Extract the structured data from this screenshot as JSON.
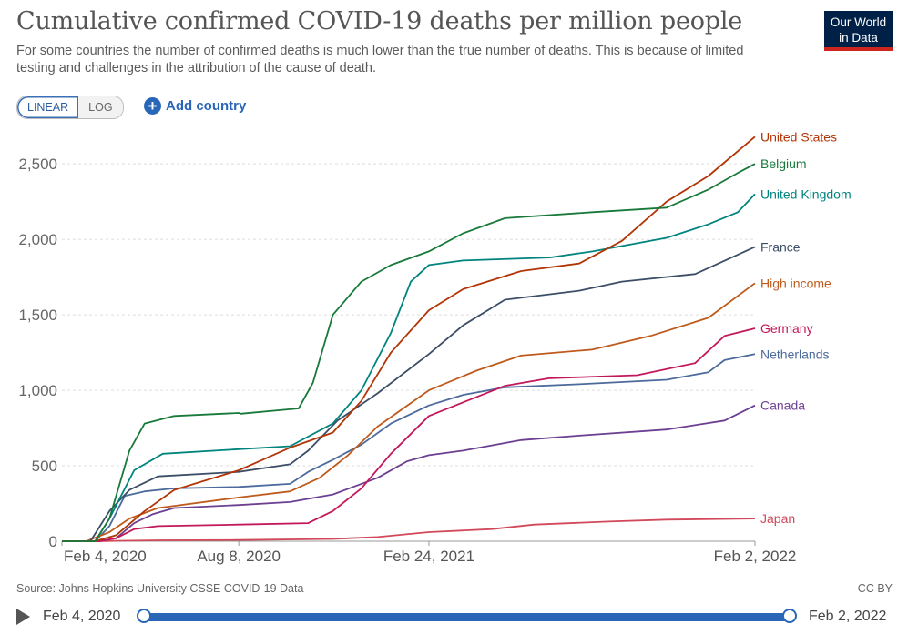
{
  "header": {
    "title": "Cumulative confirmed COVID-19 deaths per million people",
    "subtitle": "For some countries the number of confirmed deaths is much lower than the true number of deaths. This is because of limited testing and challenges in the attribution of the cause of death.",
    "logo_line1": "Our World",
    "logo_line2": "in Data"
  },
  "controls": {
    "linear_label": "LINEAR",
    "log_label": "LOG",
    "add_country_label": "Add country"
  },
  "footer": {
    "source": "Source: Johns Hopkins University CSSE COVID-19 Data",
    "license": "CC BY"
  },
  "timeline": {
    "start_label": "Feb 4, 2020",
    "end_label": "Feb 2, 2022",
    "start_fraction": 0,
    "end_fraction": 1
  },
  "chart_data": {
    "type": "line",
    "title": "Cumulative confirmed COVID-19 deaths per million people",
    "xlabel": "",
    "ylabel": "",
    "x_range": [
      "2020-02-04",
      "2022-02-02"
    ],
    "x_ticks": [
      {
        "date": "2020-02-04",
        "label": "Feb 4, 2020"
      },
      {
        "date": "2020-08-08",
        "label": "Aug 8, 2020"
      },
      {
        "date": "2021-02-24",
        "label": "Feb 24, 2021"
      },
      {
        "date": "2022-02-02",
        "label": "Feb 2, 2022"
      }
    ],
    "ylim": [
      0,
      2700
    ],
    "y_ticks": [
      0,
      500,
      1000,
      1500,
      2000,
      2500
    ],
    "y_tick_labels": [
      "0",
      "500",
      "1,000",
      "1,500",
      "2,000",
      "2,500"
    ],
    "grid": "horizontal dashed",
    "legend": "inline labels at line ends (right)",
    "series": [
      {
        "name": "Japan",
        "color": "#d1495b",
        "points": [
          [
            "2020-02-04",
            0
          ],
          [
            "2020-03-20",
            1
          ],
          [
            "2020-05-15",
            6
          ],
          [
            "2020-08-08",
            8
          ],
          [
            "2020-11-15",
            15
          ],
          [
            "2021-01-01",
            28
          ],
          [
            "2021-02-24",
            60
          ],
          [
            "2021-05-01",
            80
          ],
          [
            "2021-06-15",
            110
          ],
          [
            "2021-09-01",
            130
          ],
          [
            "2021-11-01",
            143
          ],
          [
            "2022-02-02",
            150
          ]
        ]
      },
      {
        "name": "Canada",
        "color": "#6c3f91",
        "points": [
          [
            "2020-02-04",
            0
          ],
          [
            "2020-03-15",
            1
          ],
          [
            "2020-04-01",
            20
          ],
          [
            "2020-04-20",
            120
          ],
          [
            "2020-05-10",
            180
          ],
          [
            "2020-06-01",
            220
          ],
          [
            "2020-08-08",
            240
          ],
          [
            "2020-10-01",
            260
          ],
          [
            "2020-11-15",
            310
          ],
          [
            "2021-01-01",
            420
          ],
          [
            "2021-02-01",
            530
          ],
          [
            "2021-02-24",
            570
          ],
          [
            "2021-04-01",
            600
          ],
          [
            "2021-06-01",
            670
          ],
          [
            "2021-08-01",
            700
          ],
          [
            "2021-11-01",
            740
          ],
          [
            "2022-01-01",
            800
          ],
          [
            "2022-02-02",
            900
          ]
        ]
      },
      {
        "name": "Netherlands",
        "color": "#4c6a9c",
        "points": [
          [
            "2020-02-04",
            0
          ],
          [
            "2020-03-10",
            0
          ],
          [
            "2020-03-25",
            100
          ],
          [
            "2020-04-10",
            300
          ],
          [
            "2020-05-01",
            330
          ],
          [
            "2020-06-01",
            350
          ],
          [
            "2020-08-08",
            360
          ],
          [
            "2020-10-01",
            380
          ],
          [
            "2020-10-20",
            460
          ],
          [
            "2020-11-15",
            540
          ],
          [
            "2020-12-15",
            640
          ],
          [
            "2021-01-15",
            780
          ],
          [
            "2021-02-24",
            900
          ],
          [
            "2021-04-01",
            970
          ],
          [
            "2021-05-15",
            1020
          ],
          [
            "2021-08-01",
            1040
          ],
          [
            "2021-11-01",
            1070
          ],
          [
            "2021-12-15",
            1120
          ],
          [
            "2022-01-01",
            1200
          ],
          [
            "2022-02-02",
            1240
          ]
        ]
      },
      {
        "name": "Germany",
        "color": "#c2185b",
        "points": [
          [
            "2020-02-04",
            0
          ],
          [
            "2020-03-15",
            0
          ],
          [
            "2020-04-01",
            20
          ],
          [
            "2020-04-20",
            80
          ],
          [
            "2020-05-15",
            100
          ],
          [
            "2020-08-08",
            110
          ],
          [
            "2020-10-20",
            120
          ],
          [
            "2020-11-15",
            200
          ],
          [
            "2020-12-15",
            350
          ],
          [
            "2021-01-15",
            580
          ],
          [
            "2021-02-24",
            830
          ],
          [
            "2021-04-01",
            920
          ],
          [
            "2021-05-15",
            1030
          ],
          [
            "2021-07-01",
            1080
          ],
          [
            "2021-10-01",
            1100
          ],
          [
            "2021-12-01",
            1180
          ],
          [
            "2022-01-01",
            1360
          ],
          [
            "2022-02-02",
            1410
          ]
        ]
      },
      {
        "name": "High income",
        "color": "#be5b1c",
        "points": [
          [
            "2020-02-04",
            0
          ],
          [
            "2020-03-01",
            1
          ],
          [
            "2020-03-25",
            60
          ],
          [
            "2020-04-15",
            150
          ],
          [
            "2020-05-15",
            220
          ],
          [
            "2020-08-08",
            290
          ],
          [
            "2020-10-01",
            330
          ],
          [
            "2020-11-01",
            420
          ],
          [
            "2020-12-01",
            570
          ],
          [
            "2021-01-01",
            760
          ],
          [
            "2021-02-24",
            1000
          ],
          [
            "2021-04-15",
            1130
          ],
          [
            "2021-06-01",
            1230
          ],
          [
            "2021-08-15",
            1270
          ],
          [
            "2021-10-15",
            1360
          ],
          [
            "2021-12-15",
            1480
          ],
          [
            "2022-02-02",
            1710
          ]
        ]
      },
      {
        "name": "France",
        "color": "#3c4e66",
        "points": [
          [
            "2020-02-04",
            0
          ],
          [
            "2020-03-05",
            0
          ],
          [
            "2020-03-25",
            200
          ],
          [
            "2020-04-15",
            340
          ],
          [
            "2020-05-15",
            430
          ],
          [
            "2020-08-08",
            460
          ],
          [
            "2020-10-01",
            510
          ],
          [
            "2020-10-20",
            600
          ],
          [
            "2020-11-20",
            800
          ],
          [
            "2021-01-01",
            980
          ],
          [
            "2021-02-24",
            1240
          ],
          [
            "2021-04-01",
            1430
          ],
          [
            "2021-05-15",
            1600
          ],
          [
            "2021-08-01",
            1660
          ],
          [
            "2021-09-15",
            1720
          ],
          [
            "2021-12-01",
            1770
          ],
          [
            "2022-02-02",
            1950
          ]
        ]
      },
      {
        "name": "United Kingdom",
        "color": "#00847e",
        "points": [
          [
            "2020-02-04",
            0
          ],
          [
            "2020-03-10",
            0
          ],
          [
            "2020-03-25",
            150
          ],
          [
            "2020-04-20",
            470
          ],
          [
            "2020-05-20",
            580
          ],
          [
            "2020-08-08",
            610
          ],
          [
            "2020-10-01",
            630
          ],
          [
            "2020-11-15",
            780
          ],
          [
            "2020-12-15",
            1000
          ],
          [
            "2021-01-15",
            1380
          ],
          [
            "2021-02-05",
            1720
          ],
          [
            "2021-02-24",
            1830
          ],
          [
            "2021-04-01",
            1860
          ],
          [
            "2021-07-01",
            1880
          ],
          [
            "2021-08-15",
            1920
          ],
          [
            "2021-11-01",
            2010
          ],
          [
            "2021-12-15",
            2100
          ],
          [
            "2022-01-15",
            2180
          ],
          [
            "2022-02-02",
            2300
          ]
        ]
      },
      {
        "name": "United States",
        "color": "#b13507",
        "points": [
          [
            "2020-02-04",
            0
          ],
          [
            "2020-03-10",
            0
          ],
          [
            "2020-04-01",
            40
          ],
          [
            "2020-05-01",
            200
          ],
          [
            "2020-06-01",
            340
          ],
          [
            "2020-08-08",
            470
          ],
          [
            "2020-10-01",
            620
          ],
          [
            "2020-11-15",
            720
          ],
          [
            "2020-12-15",
            930
          ],
          [
            "2021-01-15",
            1250
          ],
          [
            "2021-02-24",
            1530
          ],
          [
            "2021-04-01",
            1670
          ],
          [
            "2021-06-01",
            1790
          ],
          [
            "2021-08-01",
            1840
          ],
          [
            "2021-09-15",
            1990
          ],
          [
            "2021-11-01",
            2250
          ],
          [
            "2021-12-15",
            2420
          ],
          [
            "2022-02-02",
            2680
          ]
        ]
      },
      {
        "name": "Belgium",
        "color": "#18793b",
        "points": [
          [
            "2020-02-04",
            0
          ],
          [
            "2020-03-10",
            0
          ],
          [
            "2020-03-25",
            150
          ],
          [
            "2020-04-15",
            600
          ],
          [
            "2020-05-01",
            780
          ],
          [
            "2020-06-01",
            830
          ],
          [
            "2020-08-08",
            850
          ],
          [
            "2020-08-10",
            845
          ],
          [
            "2020-10-10",
            880
          ],
          [
            "2020-10-25",
            1050
          ],
          [
            "2020-11-15",
            1500
          ],
          [
            "2020-12-15",
            1720
          ],
          [
            "2021-01-15",
            1830
          ],
          [
            "2021-02-24",
            1920
          ],
          [
            "2021-04-01",
            2040
          ],
          [
            "2021-05-15",
            2140
          ],
          [
            "2021-08-15",
            2180
          ],
          [
            "2021-11-01",
            2210
          ],
          [
            "2021-12-15",
            2330
          ],
          [
            "2022-01-15",
            2440
          ],
          [
            "2022-02-02",
            2500
          ]
        ]
      }
    ]
  }
}
